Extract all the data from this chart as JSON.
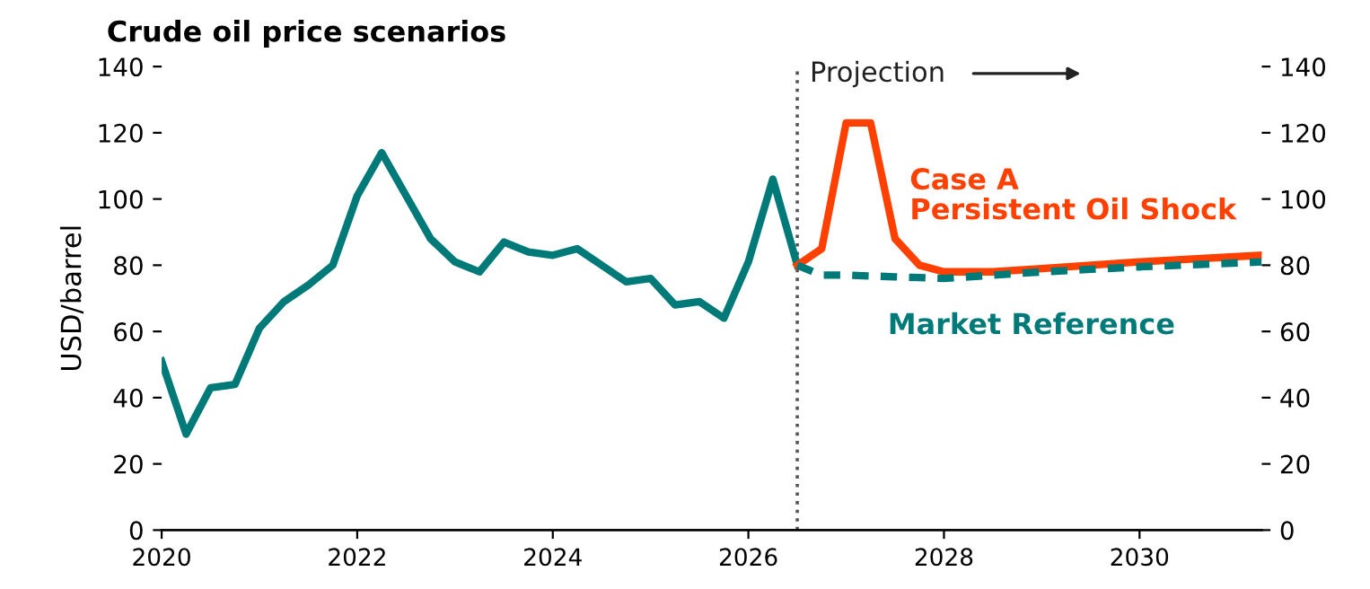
{
  "chart_data": {
    "type": "line",
    "title": "Crude oil price scenarios",
    "ylabel": "USD/barrel",
    "xlim": [
      2020,
      2031.25
    ],
    "xticks": [
      2020,
      2022,
      2024,
      2026,
      2028,
      2030
    ],
    "ylim": [
      0,
      140
    ],
    "yticks": [
      0,
      20,
      40,
      60,
      80,
      100,
      120,
      140
    ],
    "y2lim": [
      0,
      140
    ],
    "y2ticks": [
      0,
      20,
      40,
      60,
      80,
      100,
      120,
      140
    ],
    "grid": false,
    "legend": false,
    "marker": "none",
    "ref_lines": [
      {
        "axis": "x",
        "value": 2026.5,
        "label": "Projection",
        "color": "#555555",
        "line_style": "dotted"
      }
    ],
    "series": [
      {
        "color": "#007a78",
        "line_style": "solid",
        "x": [
          2020,
          2020.25,
          2020.5,
          2020.75,
          2021,
          2021.25,
          2021.5,
          2021.75,
          2022,
          2022.25,
          2022.5,
          2022.75,
          2023,
          2023.25,
          2023.5,
          2023.75,
          2024,
          2024.25,
          2024.5,
          2024.75,
          2025,
          2025.25,
          2025.5,
          2025.75,
          2026,
          2026.25,
          2026.5
        ],
        "values": [
          51,
          29,
          43,
          44,
          61,
          69,
          74,
          80,
          101,
          114,
          101,
          88,
          81,
          78,
          87,
          84,
          83,
          85,
          80,
          75,
          76,
          68,
          69,
          64,
          81,
          106,
          80
        ]
      },
      {
        "name": "Case A\nPersistent Oil Shock",
        "color": "#ff4000",
        "line_style": "solid",
        "x": [
          2026.5,
          2026.75,
          2027,
          2027.25,
          2027.5,
          2027.75,
          2028,
          2028.5,
          2029,
          2030,
          2031.25
        ],
        "values": [
          80,
          85,
          123,
          123,
          88,
          80,
          78,
          78,
          79,
          81,
          83
        ]
      },
      {
        "name": "Market Reference",
        "color": "#007a78",
        "line_style": "dashed",
        "x": [
          2026.5,
          2026.75,
          2027,
          2027.5,
          2028,
          2029,
          2030,
          2031.25
        ],
        "values": [
          80,
          77,
          77,
          76.5,
          76,
          78,
          79.5,
          81
        ]
      }
    ]
  }
}
